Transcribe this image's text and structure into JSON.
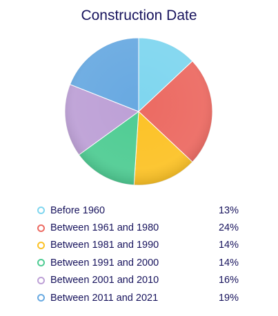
{
  "chart_data": {
    "type": "pie",
    "title": "Construction Date",
    "categories": [
      "Before 1960",
      "Between 1961 and 1980",
      "Between 1981 and 1990",
      "Between 1991 and 2000",
      "Between 2001 and 2010",
      "Between 2011 and 2021"
    ],
    "values": [
      13,
      24,
      14,
      14,
      16,
      19
    ],
    "value_labels": [
      "13%",
      "24%",
      "14%",
      "14%",
      "16%",
      "19%"
    ],
    "colors": [
      "#7fd6ef",
      "#ec6a62",
      "#fcc226",
      "#4fcc93",
      "#bda0d6",
      "#68a9e1"
    ],
    "legend_position": "bottom"
  }
}
